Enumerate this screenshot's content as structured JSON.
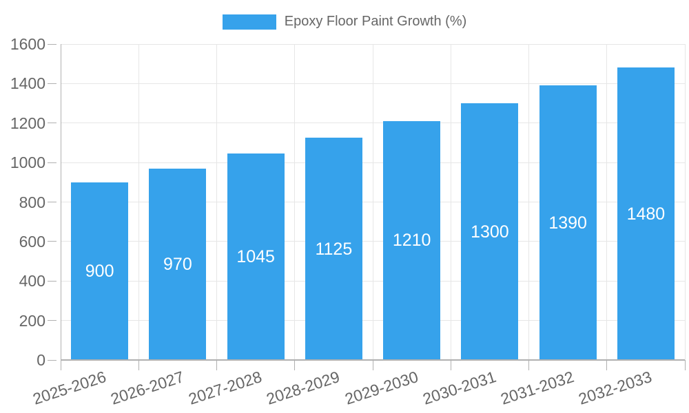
{
  "legend": {
    "label": "Epoxy Floor Paint Growth (%)"
  },
  "chart_data": {
    "type": "bar",
    "title": "",
    "xlabel": "",
    "ylabel": "",
    "categories": [
      "2025-2026",
      "2026-2027",
      "2027-2028",
      "2028-2029",
      "2029-2030",
      "2030-2031",
      "2031-2032",
      "2032-2033"
    ],
    "values": [
      900,
      970,
      1045,
      1125,
      1210,
      1300,
      1390,
      1480
    ],
    "series": [
      {
        "name": "Epoxy Floor Paint Growth (%)",
        "values": [
          900,
          970,
          1045,
          1125,
          1210,
          1300,
          1390,
          1480
        ]
      }
    ],
    "ylim": [
      0,
      1600
    ],
    "yticks": [
      0,
      200,
      400,
      600,
      800,
      1000,
      1200,
      1400,
      1600
    ],
    "grid": true,
    "legend_position": "top",
    "value_labels_position": "inside-center",
    "xtick_rotation_deg": -18,
    "colors": {
      "bar": "#36A2EB",
      "grid": "#E6E6E6",
      "axis": "#B0B0B0",
      "tick_text": "#666666",
      "value_label": "#FFFFFF",
      "background": "#FFFFFF"
    }
  }
}
